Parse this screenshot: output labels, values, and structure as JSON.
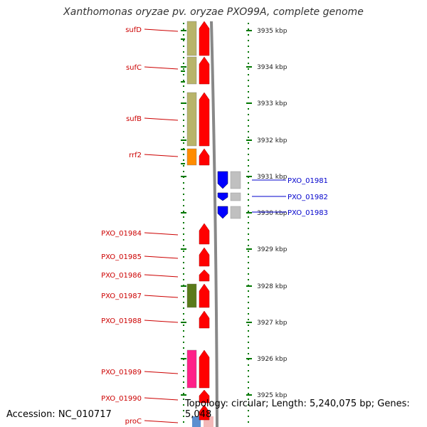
{
  "title": "Xanthomonas oryzae pv. oryzae PXO99A, complete genome",
  "footer": {
    "accession": "Accession: NC_010717",
    "summary": "Topology: circular; Length: 5,240,075 bp; Genes: 5,048"
  },
  "colors": {
    "forward_cds": "#ff0000",
    "reverse_cds": "#0000ff",
    "gene_rna_shade": "#c0c0c0",
    "suf_gene": "#b8b46a",
    "rrf2_gene": "#ff8c00",
    "pxo01987_gene": "#5a7a1a",
    "pxo01989_gene": "#ff2088",
    "ruler_dots": "#007700",
    "forward_label": "#cc0000",
    "reverse_label": "#0000cc"
  },
  "ruler_ticks": [
    {
      "label": "3935 kbp",
      "kbp": 3935
    },
    {
      "label": "3934 kbp",
      "kbp": 3934
    },
    {
      "label": "3933 kbp",
      "kbp": 3933
    },
    {
      "label": "3932 kbp",
      "kbp": 3932
    },
    {
      "label": "3931 kbp",
      "kbp": 3931
    },
    {
      "label": "3930 kbp",
      "kbp": 3930
    },
    {
      "label": "3929 kbp",
      "kbp": 3929
    },
    {
      "label": "3928 kbp",
      "kbp": 3928
    },
    {
      "label": "3927 kbp",
      "kbp": 3927
    },
    {
      "label": "3926 kbp",
      "kbp": 3926
    },
    {
      "label": "3925 kbp",
      "kbp": 3925
    }
  ],
  "forward_genes": [
    {
      "name": "sufD",
      "color_key": "suf_gene"
    },
    {
      "name": "sufC",
      "color_key": "suf_gene"
    },
    {
      "name": "sufB",
      "color_key": "suf_gene"
    },
    {
      "name": "rrf2",
      "color_key": "rrf2_gene"
    },
    {
      "name": "PXO_01984",
      "color_key": ""
    },
    {
      "name": "PXO_01985",
      "color_key": ""
    },
    {
      "name": "PXO_01986",
      "color_key": ""
    },
    {
      "name": "PXO_01987",
      "color_key": "pxo01987_gene"
    },
    {
      "name": "PXO_01988",
      "color_key": ""
    },
    {
      "name": "PXO_01989",
      "color_key": "pxo01989_gene"
    },
    {
      "name": "PXO_01990",
      "color_key": ""
    },
    {
      "name": "proC",
      "color_key": ""
    }
  ],
  "reverse_genes": [
    {
      "name": "PXO_01981"
    },
    {
      "name": "PXO_01982"
    },
    {
      "name": "PXO_01983"
    }
  ]
}
